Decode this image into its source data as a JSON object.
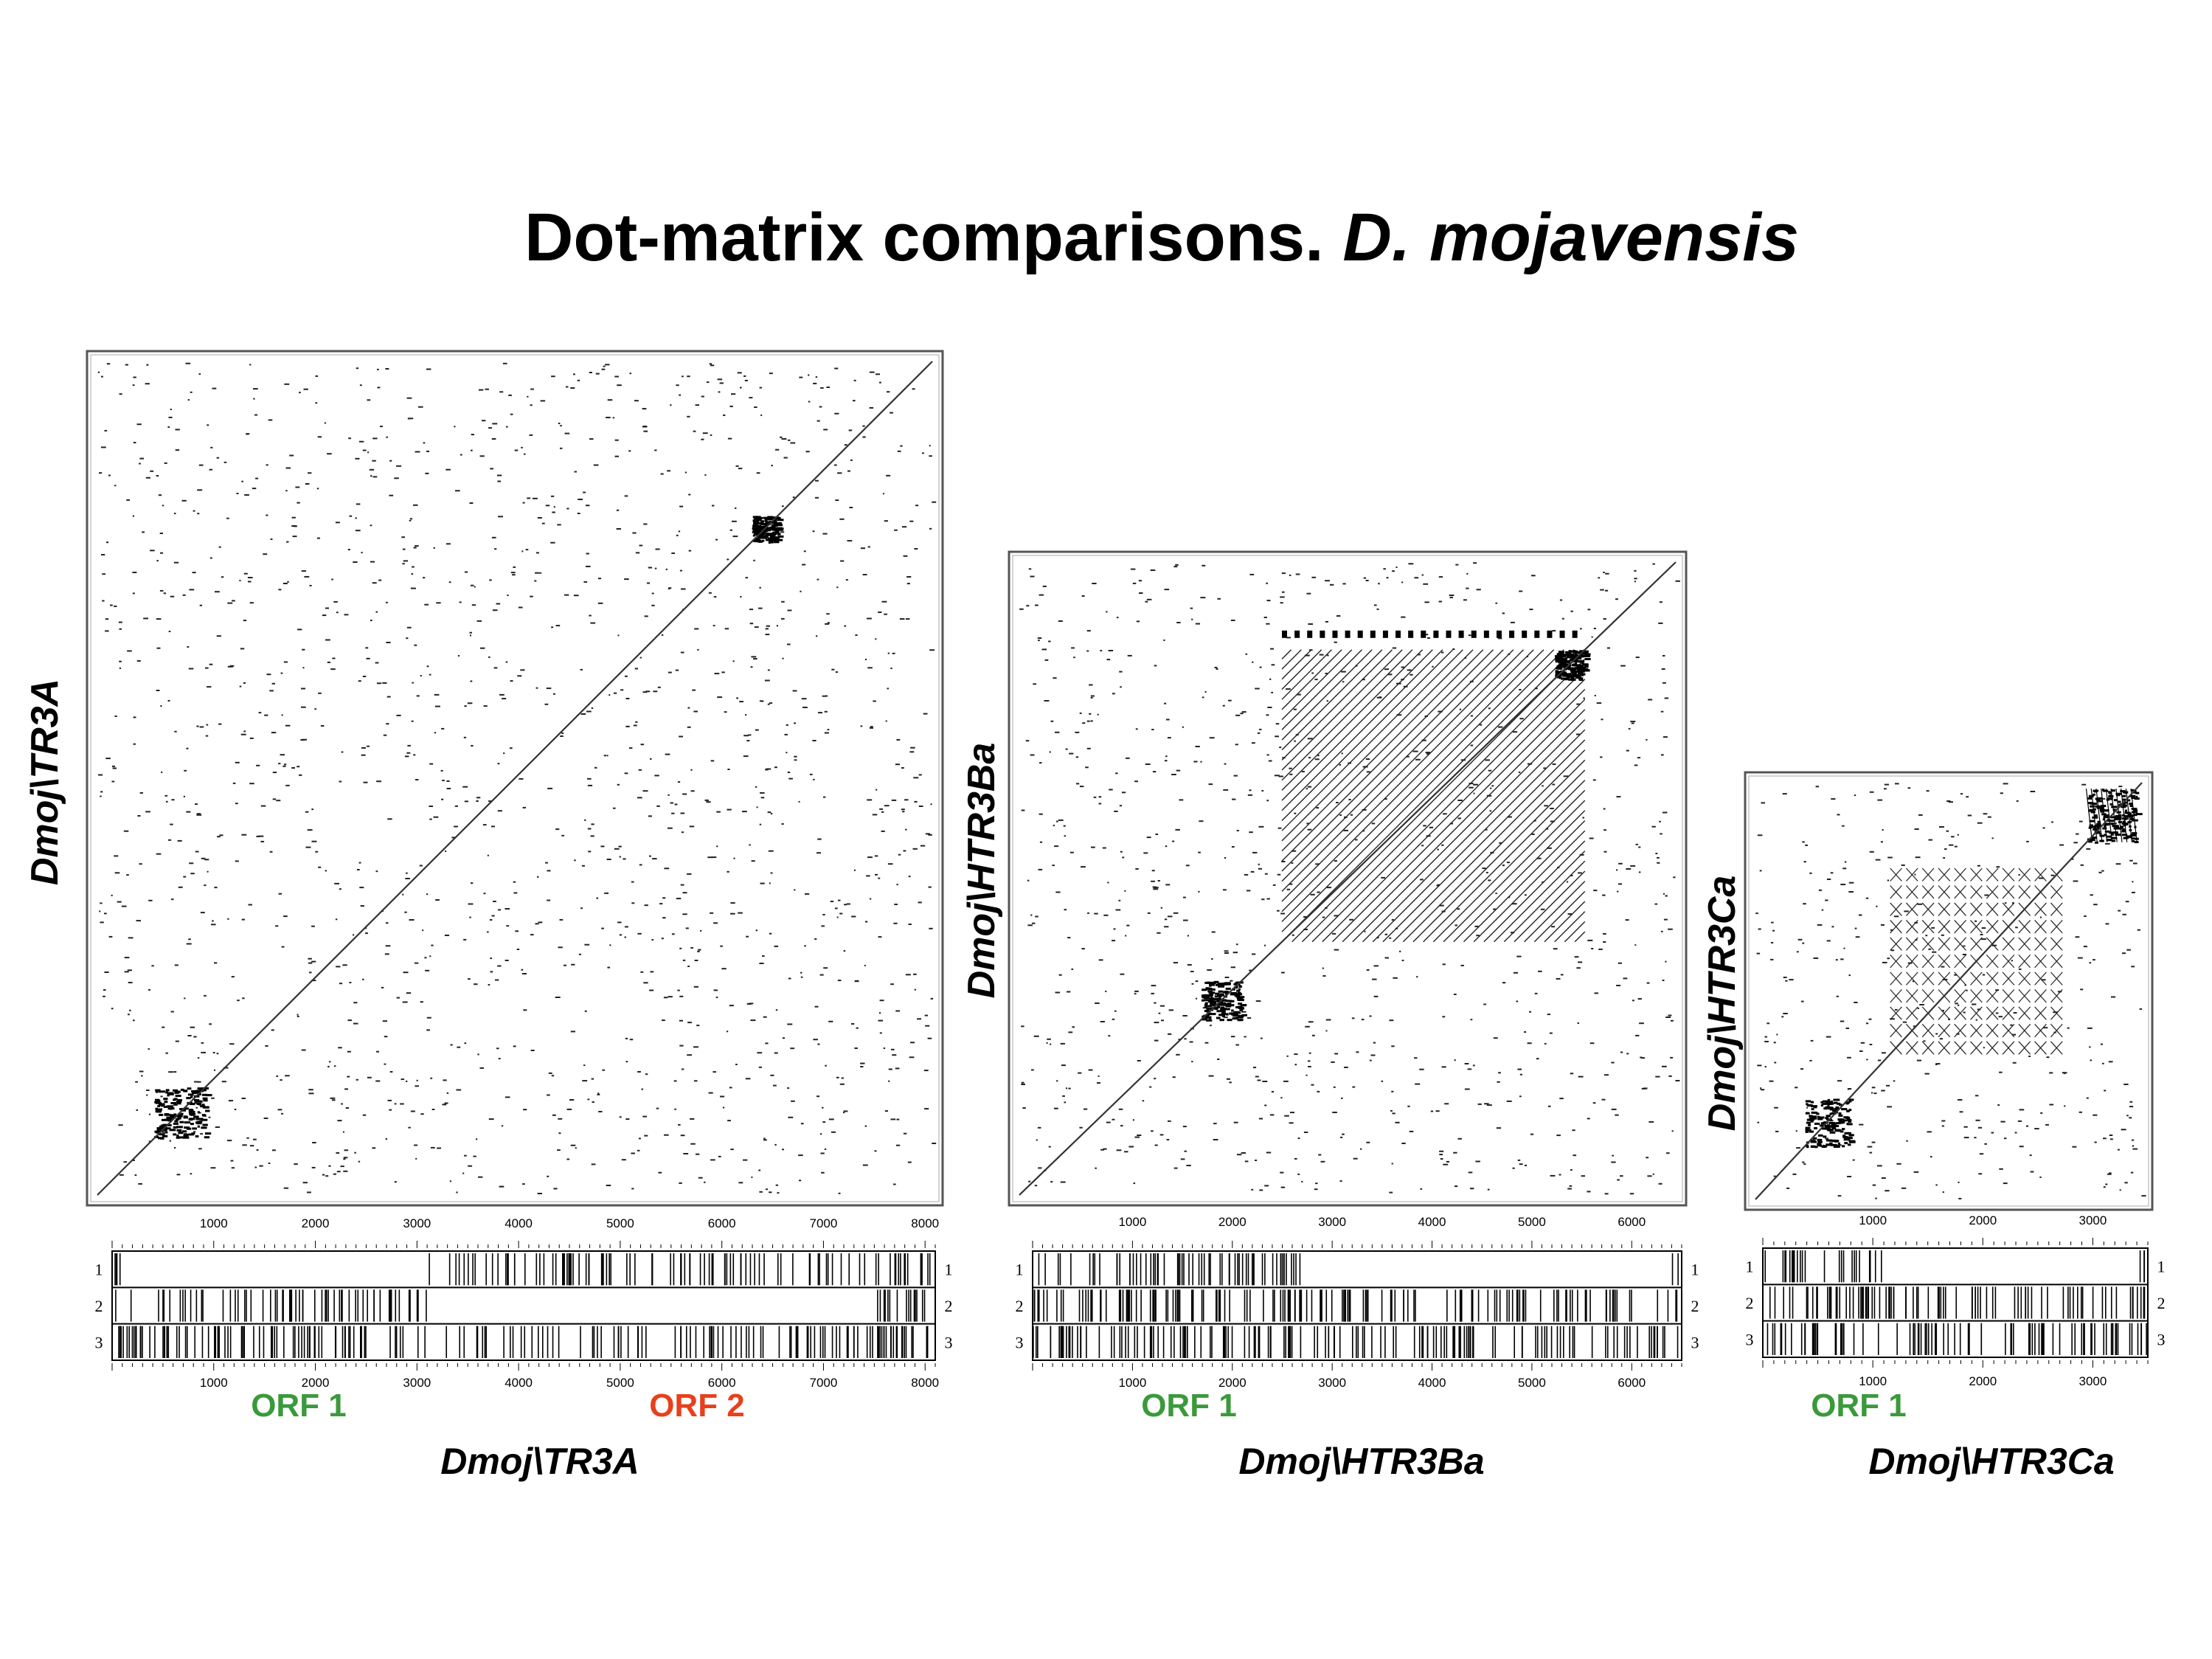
{
  "title": {
    "main": "Dot-matrix comparisons. ",
    "species": "D. mojavensis"
  },
  "panels": [
    {
      "id": "tr3a",
      "y_label": "Dmoj\\TR3A",
      "x_label": "Dmoj\\TR3A",
      "length": 8100,
      "ticks": [
        1000,
        2000,
        3000,
        4000,
        5000,
        6000,
        7000,
        8000
      ],
      "frame_labels": [
        "1",
        "2",
        "3"
      ],
      "orfs": [
        {
          "label": "ORF 1",
          "color": "#3a9a3a",
          "frame": 1,
          "start": 100,
          "end": 3100
        },
        {
          "label": "ORF 2",
          "color": "#e8401c",
          "frame": 2,
          "start": 3100,
          "end": 7500
        }
      ],
      "repeat_blocks": [
        {
          "start": 550,
          "end": 1050,
          "kind": "dense"
        },
        {
          "start": 6350,
          "end": 6600,
          "kind": "dense"
        }
      ]
    },
    {
      "id": "htr3ba",
      "y_label": "Dmoj\\HTR3Ba",
      "x_label": "Dmoj\\HTR3Ba",
      "length": 6500,
      "ticks": [
        1000,
        2000,
        3000,
        4000,
        5000,
        6000
      ],
      "frame_labels": [
        "1",
        "2",
        "3"
      ],
      "orfs": [
        {
          "label": "ORF 1",
          "color": "#3a9a3a",
          "frame": 1,
          "start": 2700,
          "end": 6400
        }
      ],
      "repeat_blocks": [
        {
          "start": 2600,
          "end": 5600,
          "kind": "tandem-stripes"
        },
        {
          "start": 5300,
          "end": 5600,
          "kind": "dense"
        },
        {
          "start": 1800,
          "end": 2200,
          "kind": "dense"
        }
      ]
    },
    {
      "id": "htr3ca",
      "y_label": "Dmoj\\HTR3Ca",
      "x_label": "Dmoj\\HTR3Ca",
      "length": 3500,
      "ticks": [
        1000,
        2000,
        3000
      ],
      "frame_labels": [
        "1",
        "2",
        "3"
      ],
      "orfs": [
        {
          "label": "ORF 1",
          "color": "#3a9a3a",
          "frame": 1,
          "start": 1100,
          "end": 3400
        }
      ],
      "repeat_blocks": [
        {
          "start": 1200,
          "end": 2800,
          "kind": "cross-hatch"
        },
        {
          "start": 3000,
          "end": 3450,
          "kind": "dense-cross"
        },
        {
          "start": 450,
          "end": 850,
          "kind": "dense"
        }
      ]
    }
  ]
}
